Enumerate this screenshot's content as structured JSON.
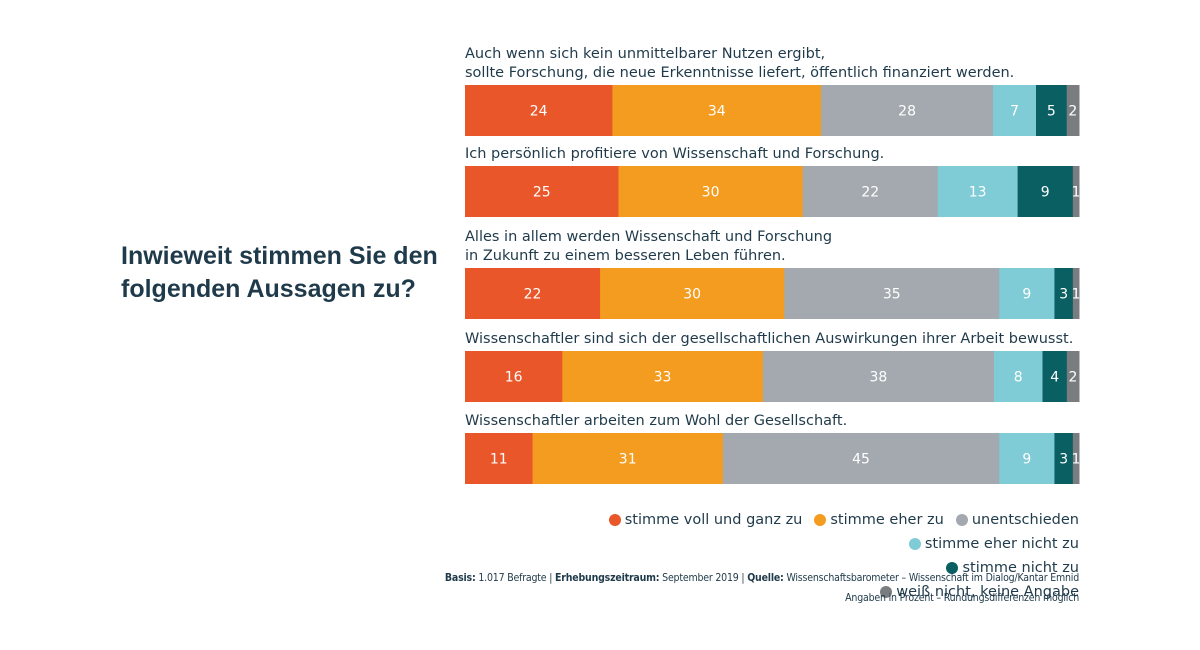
{
  "title": "Inwieweit stimmen Sie den folgenden Aussagen zu?",
  "chart_data": {
    "type": "bar",
    "orientation": "horizontal",
    "stacked": true,
    "unit": "percent",
    "categories": [
      [
        "Auch wenn sich kein unmittelbarer Nutzen ergibt,",
        "sollte Forschung, die neue Erkenntnisse liefert, öffentlich finanziert werden."
      ],
      [
        "Ich persönlich profitiere von Wissenschaft und Forschung."
      ],
      [
        "Alles in allem werden Wissenschaft und Forschung",
        "in Zukunft zu einem besseren Leben führen."
      ],
      [
        "Wissenschaftler sind sich der gesellschaftlichen Auswirkungen ihrer Arbeit bewusst."
      ],
      [
        "Wissenschaftler arbeiten zum Wohl der Gesellschaft."
      ]
    ],
    "series": [
      {
        "name": "stimme voll und ganz zu",
        "color": "#e8562a",
        "values": [
          24,
          25,
          22,
          16,
          11
        ]
      },
      {
        "name": "stimme eher zu",
        "color": "#f39c1f",
        "values": [
          34,
          30,
          30,
          33,
          31
        ]
      },
      {
        "name": "unentschieden",
        "color": "#a3a9ae",
        "values": [
          28,
          22,
          35,
          38,
          45
        ]
      },
      {
        "name": "stimme eher nicht zu",
        "color": "#7fcbd6",
        "values": [
          7,
          13,
          9,
          8,
          9
        ]
      },
      {
        "name": "stimme nicht zu",
        "color": "#0a5f62",
        "values": [
          5,
          9,
          3,
          4,
          3
        ]
      },
      {
        "name": "weiß nicht, keine Angabe",
        "color": "#7a7d80",
        "values": [
          2,
          1,
          1,
          2,
          1
        ]
      }
    ]
  },
  "source": {
    "basis_label": "Basis:",
    "basis_value": "1.017 Befragte",
    "period_label": "Erhebungszeitraum:",
    "period_value": "September 2019",
    "quelle_label": "Quelle:",
    "quelle_value": "Wissenschaftsbarometer – Wissenschaft im Dialog/Kantar Emnid",
    "separator": "|",
    "note": "Angaben in Prozent – Rundungsdifferenzen möglich"
  }
}
